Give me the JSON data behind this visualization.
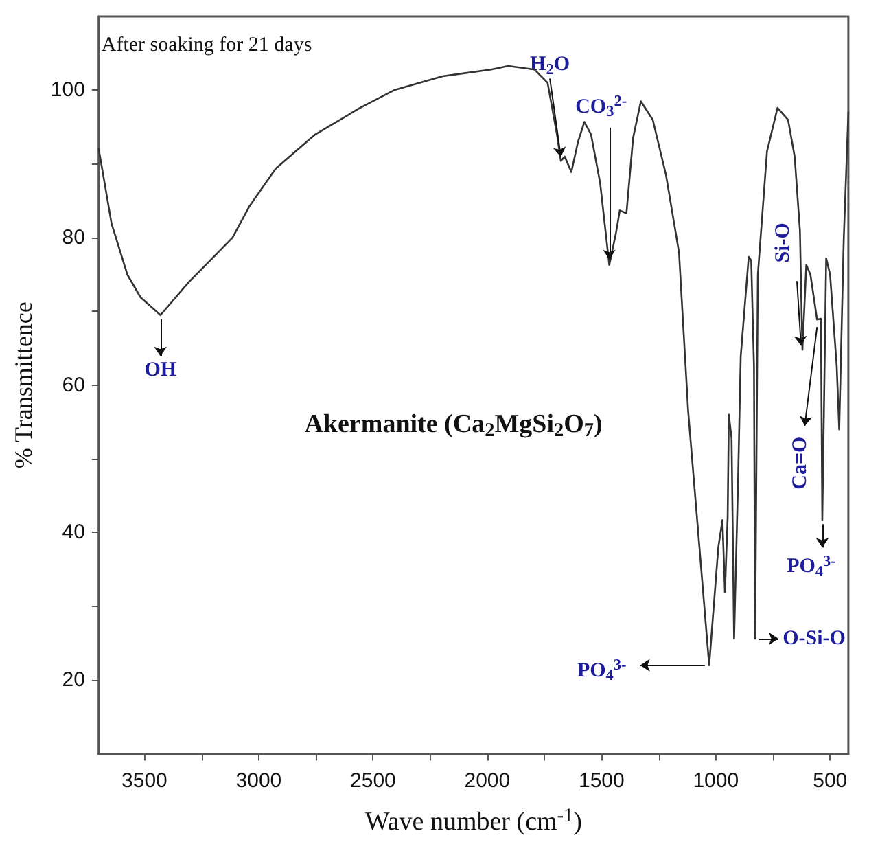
{
  "chart_data": {
    "type": "line",
    "xlabel": "Wave number (cm$^{-1}$)",
    "ylabel": "% Transmittence",
    "x": [
      3700,
      3644,
      3575,
      3517,
      3430,
      3305,
      3213,
      3115,
      3040,
      2925,
      2753,
      2557,
      2408,
      2195,
      2100,
      1983,
      1908,
      1793,
      1736,
      1695,
      1678,
      1661,
      1632,
      1603,
      1575,
      1546,
      1506,
      1466,
      1437,
      1420,
      1391,
      1362,
      1328,
      1276,
      1218,
      1161,
      1121,
      1029,
      989,
      971,
      960,
      948,
      943,
      931,
      920,
      902,
      891,
      856,
      845,
      833,
      828,
      816,
      776,
      730,
      684,
      655,
      632,
      621,
      604,
      586,
      557,
      540,
      534,
      517,
      500,
      471,
      460,
      440,
      420
    ],
    "series": [
      {
        "color": "#333333",
        "values": [
          92,
          81.9,
          75,
          71.9,
          69.5,
          74,
          76.9,
          80,
          84.3,
          89.4,
          94,
          97.6,
          100,
          101.9,
          102.3,
          102.8,
          103.3,
          102.8,
          101,
          94,
          90.4,
          91,
          88.9,
          93,
          95.7,
          94,
          87.4,
          76.3,
          80.6,
          83.7,
          83.3,
          93.5,
          98.5,
          96,
          88.5,
          78,
          56.5,
          22,
          38,
          41.7,
          31.9,
          42.2,
          56,
          52.8,
          25.6,
          47.8,
          63.9,
          77.4,
          76.9,
          62.6,
          25.6,
          75,
          91.7,
          97.6,
          96,
          91,
          81,
          64.8,
          76.3,
          75,
          68.9,
          69,
          41.7,
          77.2,
          75,
          62.6,
          54,
          80,
          97
        ]
      }
    ],
    "xlim": [
      3700,
      420
    ],
    "xticks": [
      3500,
      {
        "value": 3250,
        "label": null
      },
      3000,
      {
        "value": 2750,
        "label": null
      },
      2500,
      {
        "value": 2250,
        "label": null
      },
      2000,
      {
        "value": 1750,
        "label": null
      },
      1500,
      {
        "value": 1250,
        "label": null
      },
      1000,
      {
        "value": 750,
        "label": null
      },
      500
    ],
    "ylim": [
      10,
      110
    ],
    "yticks": [
      20,
      {
        "value": 30,
        "label": null
      },
      40,
      {
        "value": 50,
        "label": null
      },
      60,
      {
        "value": 70,
        "label": null
      },
      80,
      {
        "value": 90,
        "label": null
      },
      100
    ],
    "grid": false,
    "marker": "none",
    "line_style": "solid",
    "annotations": [
      "After soaking for 21 days",
      "Akermanite (Ca$_{2}$MgSi$_{2}$O$_{7}$)",
      {
        "text": "OH",
        "x": 3430,
        "y": 69.5
      },
      {
        "text": "H$_{2}$O",
        "x": 1678,
        "y": 90.4
      },
      {
        "text": "CO$_{3}$$^{2-}$",
        "x": 1466,
        "y": 76.3
      },
      {
        "text": "Si-O",
        "x": 621,
        "y": 64.8
      },
      {
        "text": "Ca=O",
        "x": 557,
        "y": 69
      },
      {
        "text": "PO$_{4}$$^{3-}$",
        "x": 534,
        "y": 41.7
      },
      {
        "text": "PO$_{4}$$^{3-}$",
        "x": 1030,
        "y": 22
      },
      {
        "text": "O-Si-O",
        "x": 828,
        "y": 25.6
      }
    ]
  }
}
